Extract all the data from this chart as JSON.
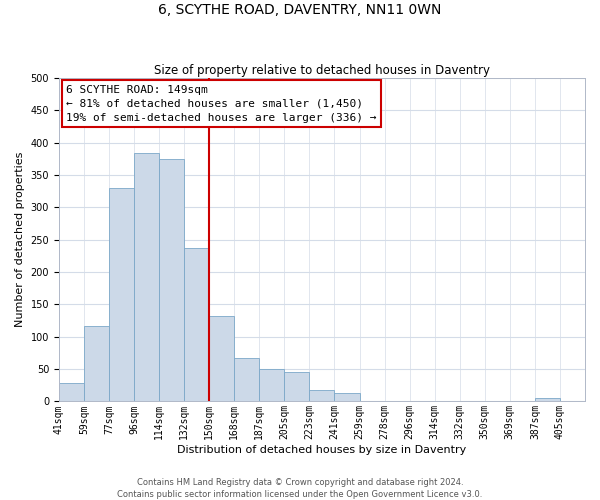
{
  "title": "6, SCYTHE ROAD, DAVENTRY, NN11 0WN",
  "subtitle": "Size of property relative to detached houses in Daventry",
  "xlabel": "Distribution of detached houses by size in Daventry",
  "ylabel": "Number of detached properties",
  "bar_labels": [
    "41sqm",
    "59sqm",
    "77sqm",
    "96sqm",
    "114sqm",
    "132sqm",
    "150sqm",
    "168sqm",
    "187sqm",
    "205sqm",
    "223sqm",
    "241sqm",
    "259sqm",
    "278sqm",
    "296sqm",
    "314sqm",
    "332sqm",
    "350sqm",
    "369sqm",
    "387sqm",
    "405sqm"
  ],
  "bar_heights": [
    28,
    116,
    330,
    385,
    375,
    237,
    132,
    67,
    50,
    46,
    18,
    13,
    0,
    0,
    0,
    0,
    0,
    0,
    0,
    5,
    0
  ],
  "bar_color": "#ccd9e8",
  "bar_edgecolor": "#7ba7c8",
  "vline_x": 6,
  "vline_color": "#cc0000",
  "annotation_line1": "6 SCYTHE ROAD: 149sqm",
  "annotation_line2": "← 81% of detached houses are smaller (1,450)",
  "annotation_line3": "19% of semi-detached houses are larger (336) →",
  "annotation_box_color": "#ffffff",
  "annotation_box_edgecolor": "#cc0000",
  "ylim": [
    0,
    500
  ],
  "yticks": [
    0,
    50,
    100,
    150,
    200,
    250,
    300,
    350,
    400,
    450,
    500
  ],
  "grid_color": "#d4dce8",
  "footer_line1": "Contains HM Land Registry data © Crown copyright and database right 2024.",
  "footer_line2": "Contains public sector information licensed under the Open Government Licence v3.0.",
  "title_fontsize": 10,
  "subtitle_fontsize": 8.5,
  "axis_label_fontsize": 8,
  "tick_fontsize": 7,
  "annotation_fontsize": 8,
  "footer_fontsize": 6
}
